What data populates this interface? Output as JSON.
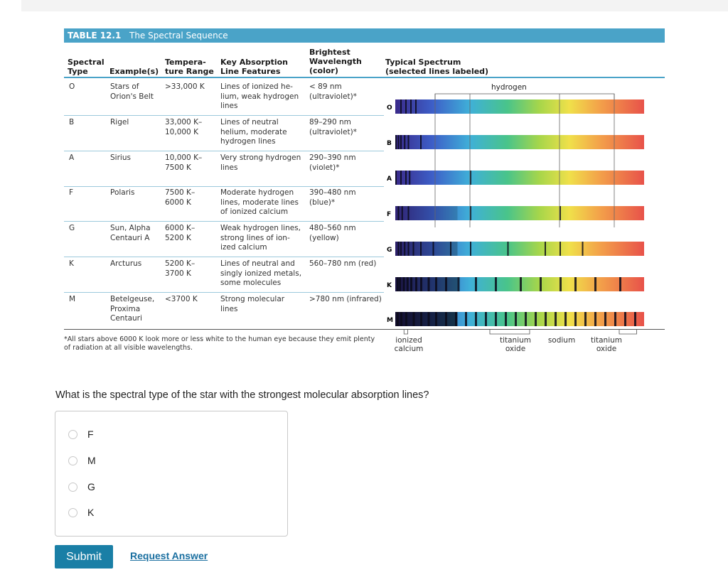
{
  "table": {
    "number": "TABLE 12.1",
    "title": "The Spectral Sequence",
    "headers": {
      "spectral_type": "Spectral\nType",
      "examples": "Example(s)",
      "temperature": "Tempera-\nture Range",
      "absorption": "Key Absorption\nLine Features",
      "wavelength": "Brightest\nWavelength\n(color)",
      "spectrum": "Typical Spectrum\n(selected lines labeled)"
    },
    "rows": [
      {
        "type": "O",
        "examples": "Stars of\nOrion's Belt",
        "temp": ">33,000 K",
        "features": "Lines of ionized he-\nlium, weak hydrogen\nlines",
        "wavelength": "< 89 nm\n(ultraviolet)*"
      },
      {
        "type": "B",
        "examples": "Rigel",
        "temp": "33,000 K–\n10,000 K",
        "features": "Lines of neutral\nhelium, moderate\nhydrogen lines",
        "wavelength": "89–290 nm\n(ultraviolet)*"
      },
      {
        "type": "A",
        "examples": "Sirius",
        "temp": "10,000 K–\n7500 K",
        "features": "Very strong hydrogen\nlines",
        "wavelength": "290–390 nm\n(violet)*"
      },
      {
        "type": "F",
        "examples": "Polaris",
        "temp": "7500 K–\n6000 K",
        "features": "Moderate hydrogen\nlines, moderate lines\nof ionized calcium",
        "wavelength": "390–480 nm\n(blue)*"
      },
      {
        "type": "G",
        "examples": "Sun, Alpha\nCentauri A",
        "temp": "6000 K–\n5200 K",
        "features": "Weak hydrogen lines,\nstrong lines of ion-\nized calcium",
        "wavelength": "480–560 nm\n(yellow)"
      },
      {
        "type": "K",
        "examples": "Arcturus",
        "temp": "5200 K–\n3700 K",
        "features": "Lines of neutral and\nsingly ionized metals,\nsome molecules",
        "wavelength": "560–780 nm (red)"
      },
      {
        "type": "M",
        "examples": "Betelgeuse,\nProxima\nCentauri",
        "temp": "<3700 K",
        "features": "Strong molecular\nlines",
        "wavelength": ">780 nm (infrared)"
      }
    ],
    "spectrum_labels": [
      "O",
      "B",
      "A",
      "F",
      "G",
      "K",
      "M"
    ],
    "hydrogen_label": "hydrogen",
    "bottom_labels": {
      "ionized_calcium": "ionized\ncalcium",
      "titanium_oxide_1": "titanium\noxide",
      "sodium": "sodium",
      "titanium_oxide_2": "titanium\noxide"
    },
    "footnote": "*All stars above 6000 K look more or less white to the human eye because they emit plenty\nof radiation at all visible wavelengths.",
    "accent_color": "#4aa3c8"
  },
  "question": "What is the spectral type of the star with the strongest molecular absorption lines?",
  "choices": [
    "F",
    "M",
    "G",
    "K"
  ],
  "buttons": {
    "submit": "Submit",
    "request_answer": "Request Answer"
  }
}
